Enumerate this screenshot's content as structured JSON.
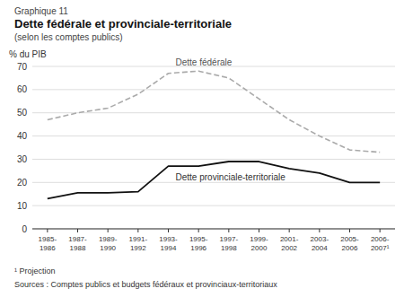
{
  "chart_data": {
    "type": "line",
    "chart_label": "Graphique 11",
    "title": "Dette fédérale et provinciale-territoriale",
    "subtitle": "(selon les comptes publics)",
    "y_label": "% du PIB",
    "footnote": "¹ Projection",
    "source": "Sources : Comptes publics et budgets fédéraux et provinciaux-territoriaux",
    "categories": [
      "1985-\n1986",
      "1987-\n1988",
      "1989-\n1990",
      "1991-\n1992",
      "1993-\n1994",
      "1995-\n1996",
      "1997-\n1998",
      "1999-\n2000",
      "2001-\n2002",
      "2003-\n2004",
      "2005-\n2006",
      "2006-\n2007¹"
    ],
    "series": [
      {
        "name": "Dette fédérale",
        "color": "#aaaaaa",
        "line_style": "dashed",
        "values": [
          47,
          50,
          52,
          58,
          67,
          68,
          65,
          56,
          47,
          40,
          34,
          33
        ]
      },
      {
        "name": "Dette provinciale-territoriale",
        "color": "#111111",
        "line_style": "solid",
        "values": [
          13,
          15.5,
          15.5,
          16,
          27,
          27,
          29,
          29,
          26,
          24,
          20,
          20
        ]
      }
    ],
    "ylim": [
      0,
      70
    ],
    "yticks": [
      0,
      10,
      20,
      30,
      40,
      50,
      60,
      70
    ],
    "grid": true
  }
}
